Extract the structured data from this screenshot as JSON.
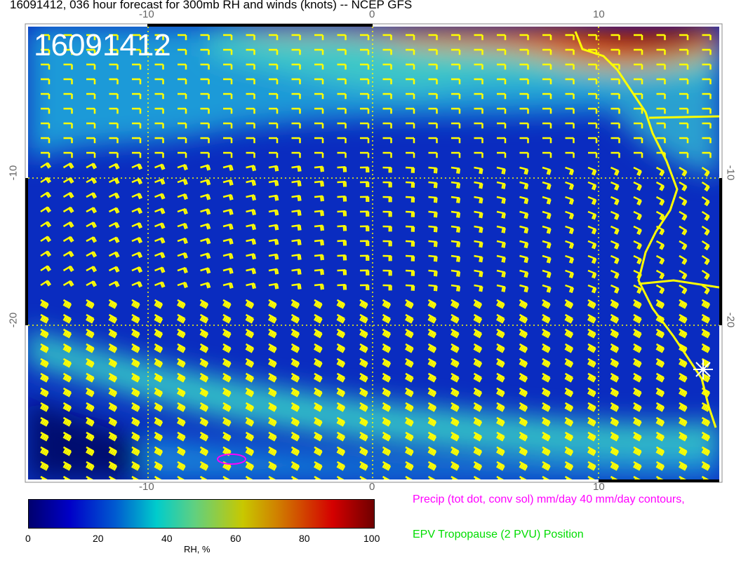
{
  "title": "16091412, 036 hour forecast for 300mb RH and winds (knots) -- NCEP GFS",
  "stamp": "16091412",
  "map": {
    "x_ticks": [
      "-10",
      "0",
      "10"
    ],
    "y_ticks": [
      "-10",
      "-20"
    ],
    "barb_color": "#ffff00",
    "coast_color": "#ffff00",
    "precip_contour_color": "#ff00ff"
  },
  "colorbar": {
    "ticks": [
      "0",
      "20",
      "40",
      "60",
      "80",
      "100"
    ],
    "label": "RH, %",
    "range": [
      0,
      100
    ]
  },
  "legend": {
    "precip": "Precip (tot dot, conv sol) mm/day 40 mm/day contours,",
    "tropopause": "EPV Tropopause (2 PVU) Position"
  }
}
